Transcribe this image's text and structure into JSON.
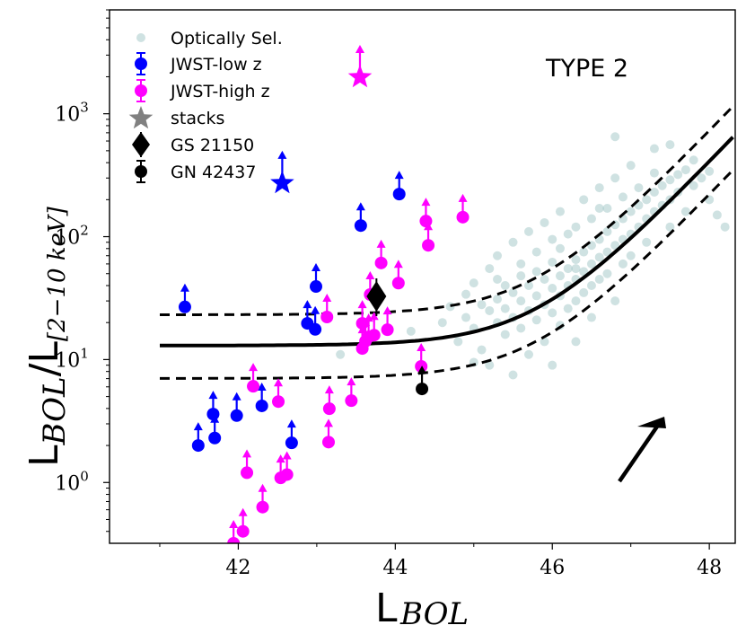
{
  "chart_data": {
    "type": "scatter",
    "title": "",
    "annotation": "TYPE 2",
    "xlabel": {
      "main": "L",
      "sub": "BOL"
    },
    "ylabel": {
      "main": "L",
      "sub": "BOL",
      "denom_main": "L",
      "denom_sub": "[2−10 keV]"
    },
    "xscale": "linear",
    "yscale": "log",
    "xlim": [
      40.36,
      48.33
    ],
    "ylim": [
      0.32,
      7000
    ],
    "xticks": [
      {
        "value": 42,
        "label": "42"
      },
      {
        "value": 44,
        "label": "44"
      },
      {
        "value": 46,
        "label": "46"
      },
      {
        "value": 48,
        "label": "48"
      }
    ],
    "yticks": [
      {
        "value": 1,
        "base": "10",
        "exp": "0"
      },
      {
        "value": 10,
        "base": "10",
        "exp": "1"
      },
      {
        "value": 100,
        "base": "10",
        "exp": "2"
      },
      {
        "value": 1000,
        "base": "10",
        "exp": "3"
      }
    ],
    "grid": false,
    "legend": {
      "placement": "top-left",
      "entries": [
        {
          "label": "Optically Sel.",
          "marker": "circle",
          "color": "#5f9ea0",
          "alpha": 0.3
        },
        {
          "label": "JWST-low z",
          "marker": "circle-errorbar",
          "color": "#0000ff"
        },
        {
          "label": "JWST-high z",
          "marker": "circle-errorbar",
          "color": "#ff00ff"
        },
        {
          "label": "stacks",
          "marker": "star",
          "color": "#808080"
        },
        {
          "label": "GS 21150",
          "marker": "diamond-errorbar",
          "color": "#000000"
        },
        {
          "label": "GN 42437",
          "marker": "circle-errorbar",
          "color": "#000000"
        }
      ]
    },
    "fit_relation": {
      "description": "K = 13 * (1 + 10^(0.672*(L - 45.79)))",
      "floor": 13,
      "slope": 0.672,
      "pivot": 45.79,
      "x_range": [
        41.0,
        48.33
      ],
      "upper_factor": 1.78,
      "lower_factor": 0.54,
      "line_styles": {
        "central": "solid",
        "bounds": "dashed"
      }
    },
    "series": [
      {
        "name": "JWST-low z",
        "color": "#0000ff",
        "marker": "circle",
        "lower_limit": true,
        "points": [
          [
            41.32,
            26.8
          ],
          [
            41.49,
            2.0
          ],
          [
            41.68,
            3.6
          ],
          [
            41.7,
            2.3
          ],
          [
            41.98,
            3.5
          ],
          [
            42.3,
            4.2
          ],
          [
            42.68,
            2.1
          ],
          [
            42.88,
            19.7
          ],
          [
            42.98,
            17.6
          ],
          [
            42.99,
            39.3
          ],
          [
            43.56,
            123
          ],
          [
            44.05,
            222
          ]
        ]
      },
      {
        "name": "JWST-high z",
        "color": "#ff00ff",
        "marker": "circle",
        "lower_limit": true,
        "points": [
          [
            42.19,
            6.06
          ],
          [
            42.51,
            4.55
          ],
          [
            43.16,
            3.98
          ],
          [
            43.44,
            4.63
          ],
          [
            43.15,
            2.13
          ],
          [
            42.11,
            1.2
          ],
          [
            42.54,
            1.09
          ],
          [
            42.62,
            1.16
          ],
          [
            42.31,
            0.63
          ],
          [
            42.06,
            0.4
          ],
          [
            41.94,
            0.32
          ],
          [
            43.13,
            22.2
          ],
          [
            43.58,
            19.7
          ],
          [
            43.66,
            15.3
          ],
          [
            43.73,
            15.8
          ],
          [
            43.58,
            12.3
          ],
          [
            43.62,
            14.1
          ],
          [
            43.68,
            33.8
          ],
          [
            43.9,
            17.5
          ],
          [
            43.82,
            61.1
          ],
          [
            44.04,
            41.9
          ],
          [
            44.33,
            8.8
          ],
          [
            44.42,
            85.0
          ],
          [
            44.39,
            134
          ],
          [
            44.86,
            144
          ]
        ]
      },
      {
        "name": "stacks",
        "marker": "star",
        "lower_limit": true,
        "points": [
          {
            "x": 42.56,
            "y": 282,
            "color": "#0000ff"
          },
          {
            "x": 43.55,
            "y": 2050,
            "color": "#ff00ff"
          }
        ]
      },
      {
        "name": "GS 21150",
        "color": "#000000",
        "marker": "diamond",
        "lower_limit": false,
        "points": [
          [
            43.76,
            32.7
          ]
        ]
      },
      {
        "name": "GN 42437",
        "color": "#000000",
        "marker": "circle",
        "lower_limit": true,
        "points": [
          [
            44.34,
            5.77
          ]
        ]
      },
      {
        "name": "Optically Sel.",
        "color": "#5f9ea0",
        "alpha": 0.3,
        "marker": "circle",
        "note": "representative sample of a dense cloud (~2000 sources)",
        "points": [
          [
            43.3,
            11.0
          ],
          [
            44.2,
            17.0
          ],
          [
            44.6,
            20.0
          ],
          [
            44.7,
            27.0
          ],
          [
            44.8,
            14.0
          ],
          [
            44.9,
            34.0
          ],
          [
            44.9,
            22.0
          ],
          [
            45.0,
            18.0
          ],
          [
            45.0,
            42.0
          ],
          [
            45.1,
            28.0
          ],
          [
            45.1,
            12.0
          ],
          [
            45.2,
            25.0
          ],
          [
            45.2,
            55.0
          ],
          [
            45.2,
            9.0
          ],
          [
            45.3,
            31.0
          ],
          [
            45.3,
            20.0
          ],
          [
            45.3,
            70.0
          ],
          [
            45.4,
            16.0
          ],
          [
            45.4,
            40.0
          ],
          [
            45.4,
            26.0
          ],
          [
            45.5,
            35.0
          ],
          [
            45.5,
            22.0
          ],
          [
            45.5,
            7.5
          ],
          [
            45.5,
            90.0
          ],
          [
            45.6,
            48.0
          ],
          [
            45.6,
            30.0
          ],
          [
            45.6,
            18.0
          ],
          [
            45.6,
            60.0
          ],
          [
            45.7,
            25.0
          ],
          [
            45.7,
            40.0
          ],
          [
            45.7,
            11.0
          ],
          [
            45.7,
            110.0
          ],
          [
            45.8,
            33.0
          ],
          [
            45.8,
            52.0
          ],
          [
            45.8,
            21.0
          ],
          [
            45.8,
            75.0
          ],
          [
            45.9,
            28.0
          ],
          [
            45.9,
            45.0
          ],
          [
            45.9,
            14.0
          ],
          [
            45.9,
            130.0
          ],
          [
            46.0,
            38.0
          ],
          [
            46.0,
            62.0
          ],
          [
            46.0,
            24.0
          ],
          [
            46.0,
            95.0
          ],
          [
            46.0,
            9.0
          ],
          [
            46.1,
            48.0
          ],
          [
            46.1,
            33.0
          ],
          [
            46.1,
            80.0
          ],
          [
            46.1,
            19.0
          ],
          [
            46.1,
            160.0
          ],
          [
            46.2,
            55.0
          ],
          [
            46.2,
            40.0
          ],
          [
            46.2,
            105.0
          ],
          [
            46.2,
            26.0
          ],
          [
            46.3,
            65.0
          ],
          [
            46.3,
            45.0
          ],
          [
            46.3,
            120.0
          ],
          [
            46.3,
            30.0
          ],
          [
            46.3,
            14.0
          ],
          [
            46.4,
            75.0
          ],
          [
            46.4,
            52.0
          ],
          [
            46.4,
            200.0
          ],
          [
            46.4,
            35.0
          ],
          [
            46.5,
            85.0
          ],
          [
            46.5,
            60.0
          ],
          [
            46.5,
            140.0
          ],
          [
            46.5,
            40.0
          ],
          [
            46.5,
            22.0
          ],
          [
            46.6,
            95.0
          ],
          [
            46.6,
            68.0
          ],
          [
            46.6,
            250.0
          ],
          [
            46.6,
            45.0
          ],
          [
            46.7,
            110.0
          ],
          [
            46.7,
            75.0
          ],
          [
            46.7,
            170.0
          ],
          [
            46.7,
            50.0
          ],
          [
            46.8,
            125.0
          ],
          [
            46.8,
            85.0
          ],
          [
            46.8,
            300.0
          ],
          [
            46.8,
            30.0
          ],
          [
            46.9,
            140.0
          ],
          [
            46.9,
            95.0
          ],
          [
            46.9,
            60.0
          ],
          [
            46.9,
            210.0
          ],
          [
            47.0,
            160.0
          ],
          [
            47.0,
            105.0
          ],
          [
            47.0,
            70.0
          ],
          [
            47.0,
            380.0
          ],
          [
            47.1,
            180.0
          ],
          [
            47.1,
            120.0
          ],
          [
            47.1,
            250.0
          ],
          [
            47.2,
            200.0
          ],
          [
            47.2,
            140.0
          ],
          [
            47.2,
            90.0
          ],
          [
            47.3,
            230.0
          ],
          [
            47.3,
            160.0
          ],
          [
            47.3,
            330.0
          ],
          [
            47.4,
            260.0
          ],
          [
            47.4,
            180.0
          ],
          [
            47.5,
            290.0
          ],
          [
            47.5,
            200.0
          ],
          [
            47.5,
            120.0
          ],
          [
            47.6,
            320.0
          ],
          [
            47.6,
            230.0
          ],
          [
            47.7,
            350.0
          ],
          [
            47.7,
            160.0
          ],
          [
            47.8,
            260.0
          ],
          [
            47.8,
            420.0
          ],
          [
            47.9,
            300.0
          ],
          [
            48.0,
            340.0
          ],
          [
            48.0,
            200.0
          ],
          [
            48.1,
            150.0
          ],
          [
            48.2,
            120.0
          ],
          [
            47.3,
            520.0
          ],
          [
            47.5,
            560.0
          ],
          [
            46.8,
            650.0
          ],
          [
            46.3,
            55.0
          ],
          [
            46.6,
            170.0
          ],
          [
            45.3,
            45.0
          ],
          [
            45.0,
            9.5
          ]
        ]
      }
    ],
    "annotation_arrow": {
      "direction": "up-right",
      "description": "reddening/bias vector"
    }
  }
}
